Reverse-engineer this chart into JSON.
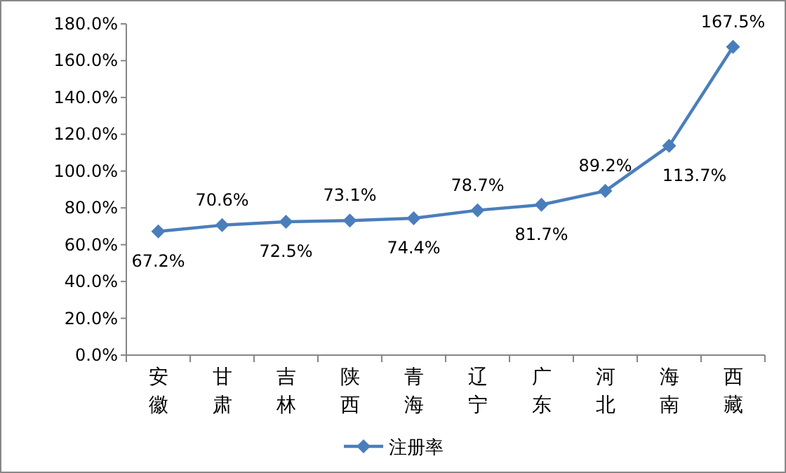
{
  "chart_data": {
    "type": "line",
    "categories": [
      "安徽",
      "甘肃",
      "吉林",
      "陕西",
      "青海",
      "辽宁",
      "广东",
      "河北",
      "海南",
      "西藏"
    ],
    "series": [
      {
        "name": "注册率",
        "color": "#4a7ebb",
        "values": [
          67.2,
          70.6,
          72.5,
          73.1,
          74.4,
          78.7,
          81.7,
          89.2,
          113.7,
          167.5
        ],
        "value_labels": [
          "67.2%",
          "70.6%",
          "72.5%",
          "73.1%",
          "74.4%",
          "78.7%",
          "81.7%",
          "89.2%",
          "113.7%",
          "167.5%"
        ]
      }
    ],
    "ylim": [
      0,
      180
    ],
    "yticks": [
      {
        "value": 0,
        "label": "0.0%"
      },
      {
        "value": 20,
        "label": "20.0%"
      },
      {
        "value": 40,
        "label": "40.0%"
      },
      {
        "value": 60,
        "label": "60.0%"
      },
      {
        "value": 80,
        "label": "80.0%"
      },
      {
        "value": 100,
        "label": "100.0%"
      },
      {
        "value": 120,
        "label": "120.0%"
      },
      {
        "value": 140,
        "label": "140.0%"
      },
      {
        "value": 160,
        "label": "160.0%"
      },
      {
        "value": 180,
        "label": "180.0%"
      }
    ],
    "grid": false,
    "legend": "bottom",
    "marker": "diamond",
    "line_style": "solid"
  }
}
